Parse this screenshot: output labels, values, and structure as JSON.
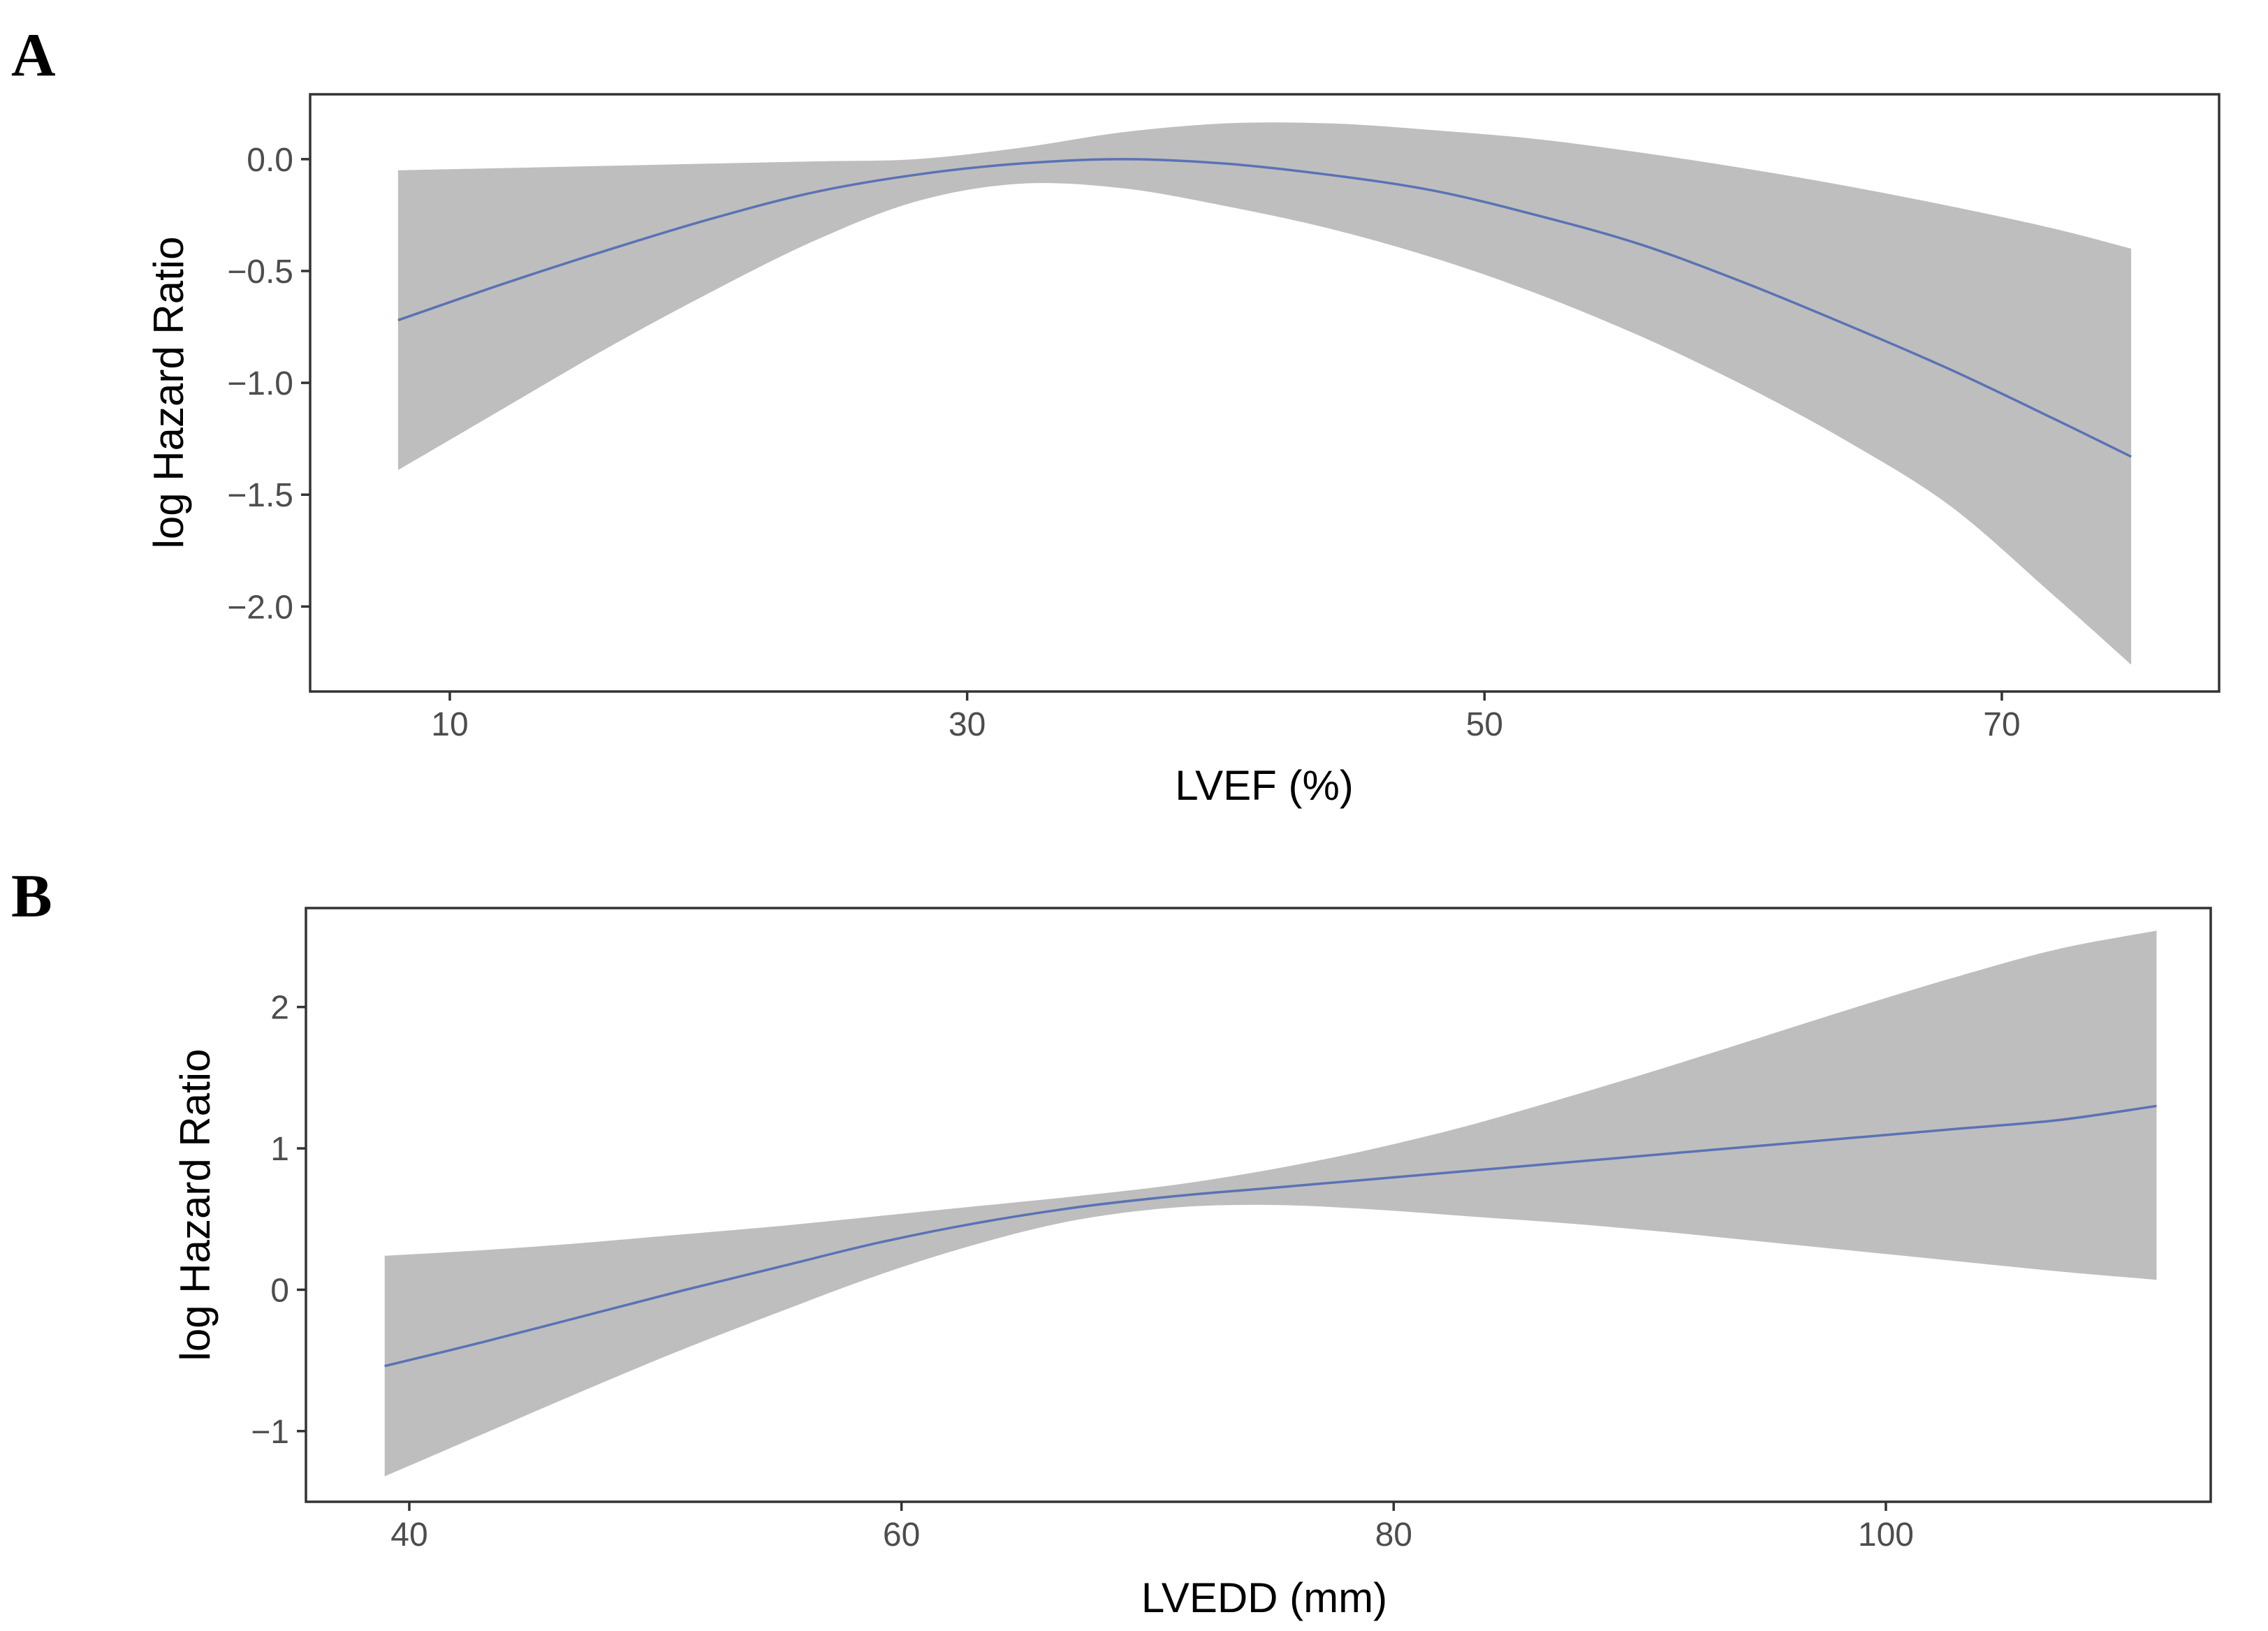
{
  "colors": {
    "band": "#bebebe",
    "line": "#5a72b5",
    "frame": "#333333",
    "tick_text": "#4d4d4d"
  },
  "chart_data": [
    {
      "panel": "A",
      "type": "line",
      "xlabel": "LVEF (%)",
      "ylabel": "log Hazard Ratio",
      "xlim": [
        4.6,
        78.4
      ],
      "ylim": [
        -2.38,
        0.29
      ],
      "xticks": [
        10,
        30,
        50,
        70
      ],
      "xtick_labels": [
        "10",
        "30",
        "50",
        "70"
      ],
      "yticks": [
        0.0,
        -0.5,
        -1.0,
        -1.5,
        -2.0
      ],
      "ytick_labels": [
        "0.0",
        "−0.5",
        "−1.0",
        "−1.5",
        "−2.0"
      ],
      "grid": false,
      "series": [
        {
          "x": [
            8,
            12,
            16,
            20,
            24,
            28,
            32,
            36,
            40,
            44,
            48,
            52,
            56,
            60,
            64,
            68,
            72,
            75
          ],
          "y": [
            -0.72,
            -0.56,
            -0.41,
            -0.27,
            -0.15,
            -0.07,
            -0.02,
            0.0,
            -0.02,
            -0.07,
            -0.14,
            -0.25,
            -0.38,
            -0.55,
            -0.74,
            -0.94,
            -1.16,
            -1.33
          ],
          "lower": [
            -1.39,
            -1.12,
            -0.85,
            -0.6,
            -0.37,
            -0.19,
            -0.11,
            -0.13,
            -0.21,
            -0.31,
            -0.44,
            -0.6,
            -0.79,
            -1.01,
            -1.26,
            -1.55,
            -1.95,
            -2.26
          ],
          "upper": [
            -0.05,
            -0.04,
            -0.03,
            -0.02,
            -0.01,
            0.0,
            0.05,
            0.12,
            0.16,
            0.16,
            0.13,
            0.09,
            0.03,
            -0.04,
            -0.12,
            -0.21,
            -0.31,
            -0.4
          ]
        }
      ]
    },
    {
      "panel": "B",
      "type": "line",
      "xlabel": "LVEDD (mm)",
      "ylabel": "log Hazard Ratio",
      "xlim": [
        35.8,
        113.2
      ],
      "ylim": [
        -1.5,
        2.7
      ],
      "xticks": [
        40,
        60,
        80,
        100
      ],
      "xtick_labels": [
        "40",
        "60",
        "80",
        "100"
      ],
      "yticks": [
        2,
        1,
        0,
        -1
      ],
      "ytick_labels": [
        "2",
        "1",
        "0",
        "−1"
      ],
      "grid": false,
      "series": [
        {
          "x": [
            39,
            43,
            47,
            51,
            55,
            59,
            63,
            67,
            71,
            75,
            79,
            83,
            87,
            91,
            95,
            99,
            103,
            107,
            111
          ],
          "y": [
            -0.54,
            -0.37,
            -0.19,
            -0.01,
            0.16,
            0.33,
            0.47,
            0.58,
            0.66,
            0.72,
            0.78,
            0.84,
            0.9,
            0.96,
            1.02,
            1.08,
            1.14,
            1.2,
            1.3
          ],
          "lower": [
            -1.32,
            -1.02,
            -0.72,
            -0.43,
            -0.16,
            0.1,
            0.32,
            0.49,
            0.58,
            0.6,
            0.57,
            0.52,
            0.47,
            0.41,
            0.34,
            0.27,
            0.2,
            0.13,
            0.07
          ],
          "upper": [
            0.24,
            0.28,
            0.33,
            0.39,
            0.45,
            0.52,
            0.59,
            0.66,
            0.74,
            0.85,
            0.99,
            1.16,
            1.36,
            1.57,
            1.79,
            2.01,
            2.22,
            2.41,
            2.54
          ]
        }
      ]
    }
  ]
}
